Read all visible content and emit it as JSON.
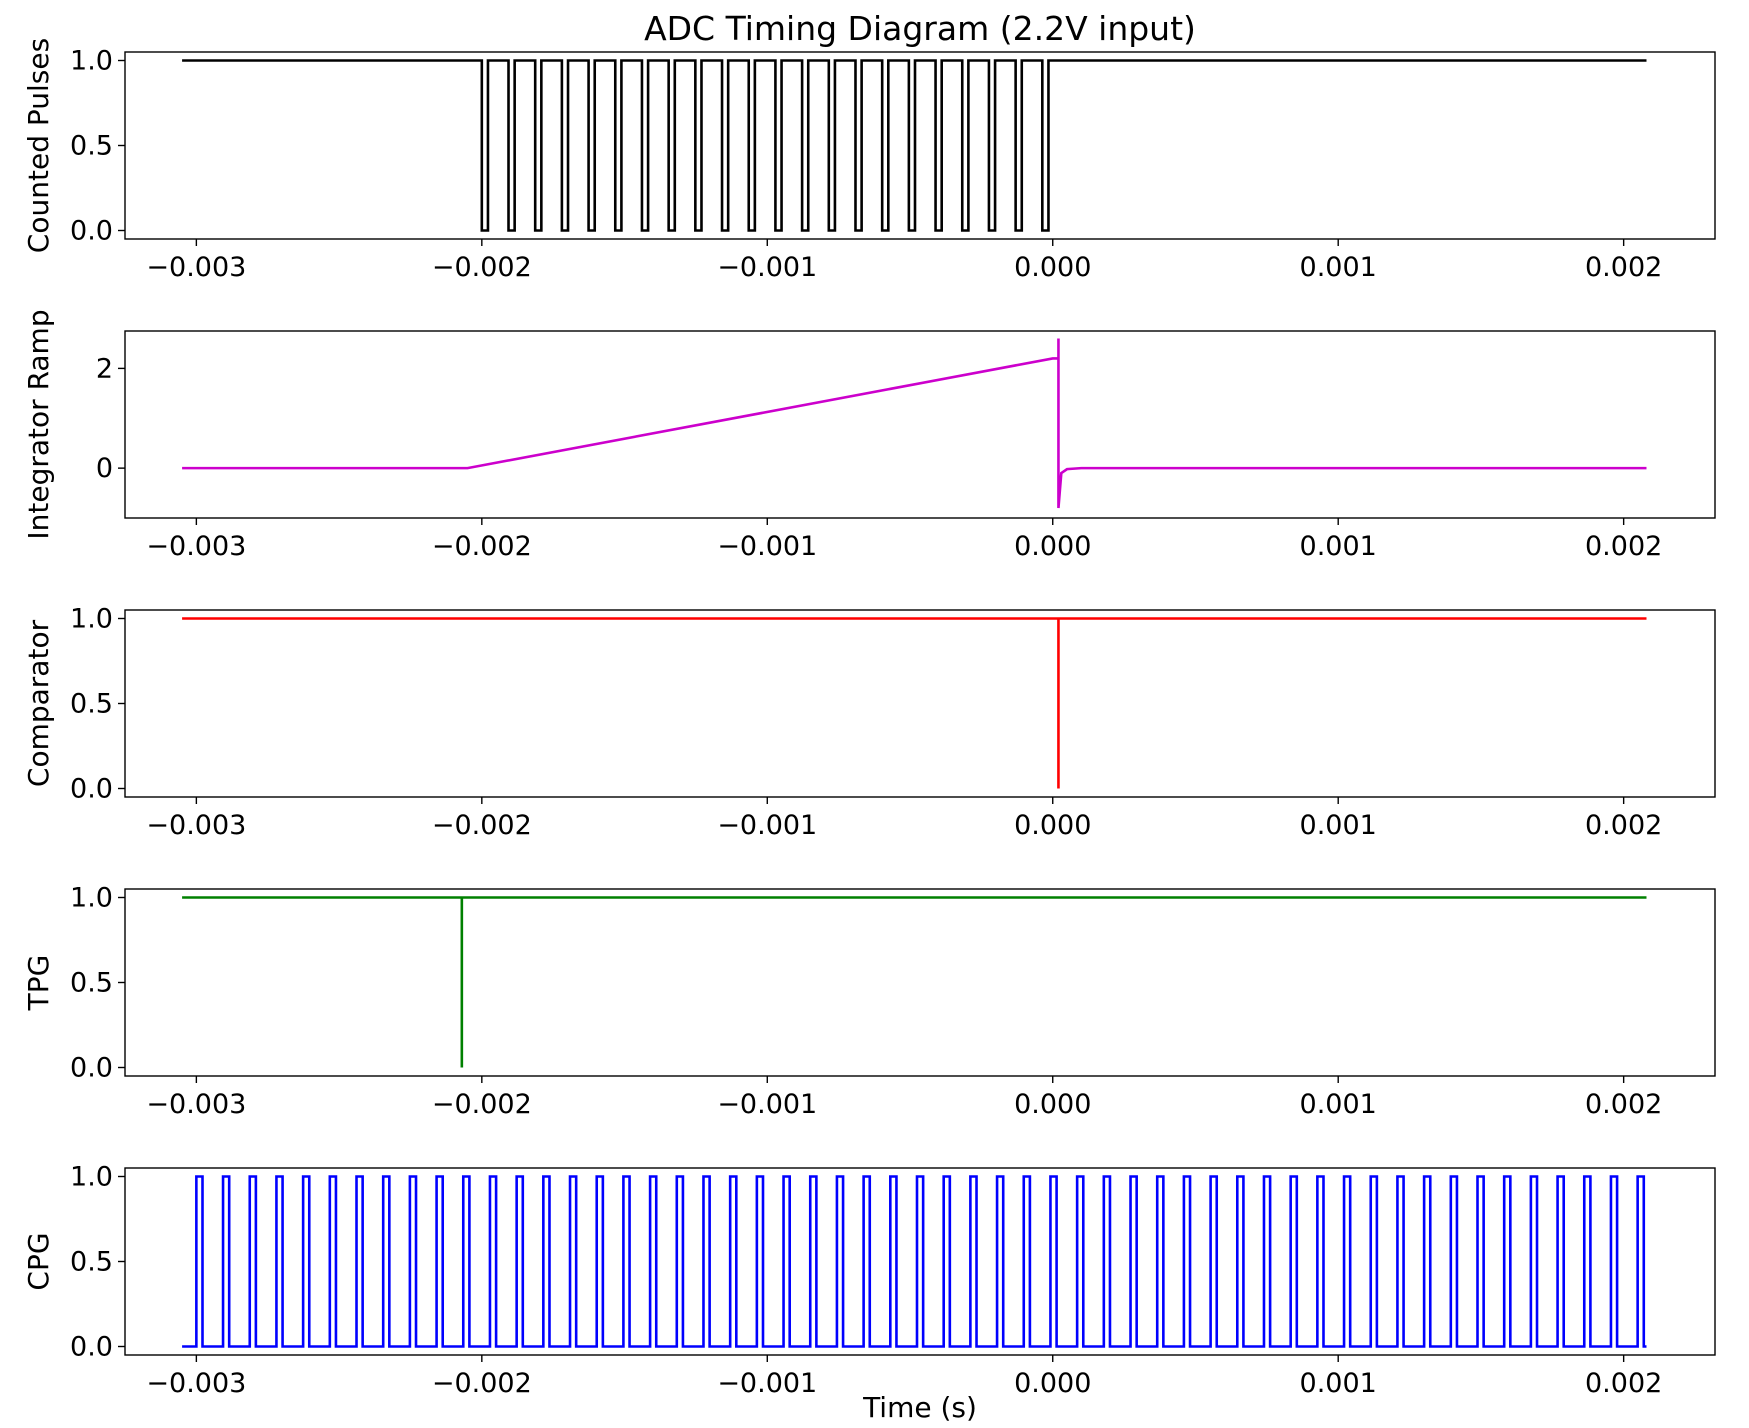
{
  "chart_data": {
    "type": "line",
    "title": "ADC Timing Diagram (2.2V input)",
    "xlabel": "Time (s)",
    "xlim": [
      -0.00325,
      0.00232
    ],
    "x_ticks": [
      -0.003,
      -0.002,
      -0.001,
      0.0,
      0.001,
      0.002
    ],
    "x_tick_labels": [
      "−0.003",
      "−0.002",
      "−0.001",
      "0.000",
      "0.001",
      "0.002"
    ],
    "subplots": [
      {
        "ylabel": "Counted Pulses",
        "color": "#000000",
        "ylim": [
          -0.05,
          1.05
        ],
        "y_ticks": [
          0.0,
          0.5,
          1.0
        ],
        "y_tick_labels": [
          "0.0",
          "0.5",
          "1.0"
        ],
        "x_start": -0.00305,
        "x_end": 0.00208,
        "idle_value": 1.0,
        "pulse_start": -0.002,
        "pulse_period": 9.35e-05,
        "pulse_width": 2.15e-05,
        "pulse_count": 22,
        "pulse_value": 0.0
      },
      {
        "ylabel": "Integrator Ramp",
        "color": "#cc00cc",
        "ylim": [
          -1.0,
          2.75
        ],
        "y_ticks": [
          0,
          2
        ],
        "y_tick_labels": [
          "0",
          "2"
        ],
        "points": [
          [
            -0.00305,
            0.0
          ],
          [
            -0.00205,
            0.0
          ],
          [
            0.0,
            2.2
          ],
          [
            2e-05,
            2.2
          ],
          [
            2e-05,
            2.6
          ],
          [
            2e-05,
            -0.8
          ],
          [
            3e-05,
            -0.1
          ],
          [
            5e-05,
            -0.02
          ],
          [
            0.0001,
            0.0
          ],
          [
            0.00208,
            0.0
          ]
        ]
      },
      {
        "ylabel": "Comparator",
        "color": "#ff0000",
        "ylim": [
          -0.05,
          1.05
        ],
        "y_ticks": [
          0.0,
          0.5,
          1.0
        ],
        "y_tick_labels": [
          "0.0",
          "0.5",
          "1.0"
        ],
        "points": [
          [
            -0.00305,
            1.0
          ],
          [
            2e-05,
            1.0
          ],
          [
            2e-05,
            0.0
          ],
          [
            2e-05,
            1.0
          ],
          [
            0.00208,
            1.0
          ]
        ]
      },
      {
        "ylabel": "TPG",
        "color": "#008000",
        "ylim": [
          -0.05,
          1.05
        ],
        "y_ticks": [
          0.0,
          0.5,
          1.0
        ],
        "y_tick_labels": [
          "0.0",
          "0.5",
          "1.0"
        ],
        "points": [
          [
            -0.00305,
            1.0
          ],
          [
            -0.00207,
            1.0
          ],
          [
            -0.00207,
            0.0
          ],
          [
            -0.00207,
            1.0
          ],
          [
            0.00208,
            1.0
          ]
        ]
      },
      {
        "ylabel": "CPG",
        "color": "#0000ff",
        "ylim": [
          -0.05,
          1.05
        ],
        "y_ticks": [
          0.0,
          0.5,
          1.0
        ],
        "y_tick_labels": [
          "0.0",
          "0.5",
          "1.0"
        ],
        "x_start": -0.00305,
        "x_end": 0.00208,
        "idle_value": 0.0,
        "pulse_start": -0.003,
        "pulse_period": 9.35e-05,
        "pulse_width": 2.15e-05,
        "pulse_count": 55,
        "pulse_value": 1.0
      }
    ]
  }
}
